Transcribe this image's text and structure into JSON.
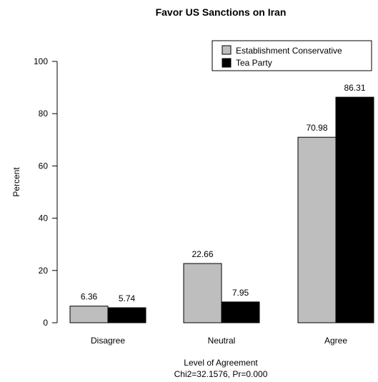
{
  "chart_data": {
    "type": "bar",
    "title": "Favor US Sanctions on Iran",
    "xlabel": "Level of Agreement",
    "xlabel_sub": "Chi2=32.1576, Pr=0.000",
    "ylabel": "Percent",
    "ylim": [
      0,
      100
    ],
    "yticks": [
      "0",
      "20",
      "40",
      "60",
      "80",
      "100"
    ],
    "categories": [
      "Disagree",
      "Neutral",
      "Agree"
    ],
    "series": [
      {
        "name": "Establishment Conservative",
        "color": "#bebebe",
        "values": [
          6.36,
          22.66,
          70.98
        ],
        "labels": [
          "6.36",
          "22.66",
          "70.98"
        ]
      },
      {
        "name": "Tea Party",
        "color": "#000000",
        "values": [
          5.74,
          7.95,
          86.31
        ],
        "labels": [
          "5.74",
          "7.95",
          "86.31"
        ]
      }
    ],
    "grid": false,
    "legend_position": "top-right"
  }
}
